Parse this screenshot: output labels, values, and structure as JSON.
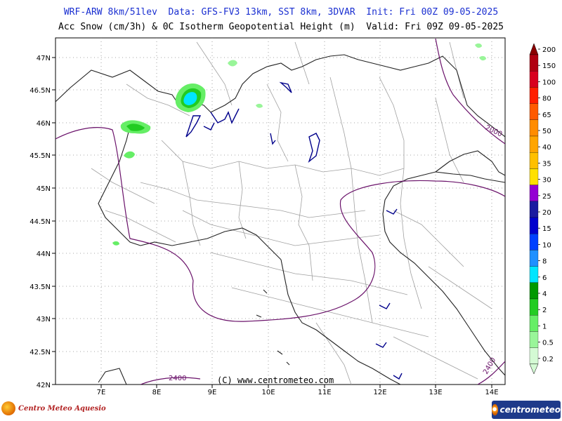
{
  "header": {
    "line1": "WRF-ARW 8km/51lev  Data: GFS-FV3 13km, SST 8km, 3DVAR  Init: Fri 00Z 09-05-2025",
    "line2": "Acc Snow (cm/3h) & 0C Isotherm Geopotential Height (m)  Valid: Fri 09Z 09-05-2025"
  },
  "map": {
    "lat_labels": [
      "47N",
      "46.5N",
      "46N",
      "45.5N",
      "45N",
      "44.5N",
      "44N",
      "43.5N",
      "43N",
      "42.5N",
      "42N"
    ],
    "lon_labels": [
      "7E",
      "8E",
      "9E",
      "10E",
      "11E",
      "12E",
      "13E",
      "14E"
    ],
    "contour_labels": [
      "2000",
      "2400",
      "2400"
    ],
    "copyright": "(C) www.centrometeo.com",
    "colors": {
      "contour": "#6a126a",
      "coast": "#222222",
      "borders": "#9a9a9a",
      "lakes": "#00008b"
    }
  },
  "colorbar": {
    "labels": [
      "200",
      "150",
      "100",
      "80",
      "65",
      "50",
      "40",
      "35",
      "30",
      "25",
      "20",
      "15",
      "10",
      "8",
      "6",
      "4",
      "2",
      "1",
      "0.5",
      "0.2"
    ],
    "colors": [
      "#8b0000",
      "#b00010",
      "#d8001e",
      "#ff1e00",
      "#ff5a00",
      "#ff8c00",
      "#ffa500",
      "#ffc000",
      "#ffe000",
      "#9400d3",
      "#1a1aa0",
      "#0000cd",
      "#0040ff",
      "#1e90ff",
      "#00e5ff",
      "#009900",
      "#22cc22",
      "#66ee66",
      "#99f599",
      "#d4fad4"
    ]
  },
  "logos": {
    "left": "Centro Meteo Aquesio",
    "right": "centrometeo"
  }
}
